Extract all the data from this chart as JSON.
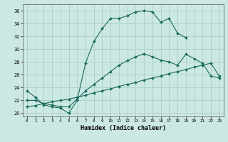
{
  "xlabel": "Humidex (Indice chaleur)",
  "bg_color": "#cce8e4",
  "grid_color": "#aacfcc",
  "line_color": "#1a6b5a",
  "xlim": [
    -0.5,
    23.5
  ],
  "ylim": [
    19.5,
    37.0
  ],
  "xticks": [
    0,
    1,
    2,
    3,
    4,
    5,
    6,
    7,
    8,
    9,
    10,
    11,
    12,
    13,
    14,
    15,
    16,
    17,
    18,
    19,
    20,
    21,
    22,
    23
  ],
  "yticks": [
    20,
    22,
    24,
    26,
    28,
    30,
    32,
    34,
    36
  ],
  "curve1_x": [
    0,
    1,
    2,
    3,
    4,
    5,
    6,
    7,
    8,
    9,
    10,
    11,
    12,
    13,
    14,
    15,
    16,
    17,
    18,
    19
  ],
  "curve1_y": [
    23.5,
    22.5,
    21.3,
    21.0,
    20.8,
    20.0,
    22.0,
    27.8,
    31.2,
    33.2,
    34.8,
    34.8,
    35.2,
    35.8,
    36.0,
    35.8,
    34.2,
    34.8,
    32.5,
    31.8
  ],
  "curve2_x": [
    0,
    1,
    2,
    3,
    4,
    5,
    6,
    7,
    8,
    9,
    10,
    11,
    12,
    13,
    14,
    15,
    16,
    17,
    18,
    19,
    20,
    21,
    22,
    23
  ],
  "curve2_y": [
    22.0,
    22.0,
    21.5,
    21.3,
    21.0,
    21.0,
    22.2,
    23.5,
    24.5,
    25.5,
    26.5,
    27.5,
    28.2,
    28.8,
    29.3,
    28.8,
    28.3,
    28.0,
    27.5,
    29.2,
    28.5,
    27.8,
    25.8,
    25.5
  ],
  "curve3_x": [
    0,
    1,
    2,
    3,
    4,
    5,
    6,
    7,
    8,
    9,
    10,
    11,
    12,
    13,
    14,
    15,
    16,
    17,
    18,
    19,
    20,
    21,
    22,
    23
  ],
  "curve3_y": [
    21.0,
    21.2,
    21.5,
    21.8,
    22.0,
    22.2,
    22.5,
    22.8,
    23.2,
    23.5,
    23.8,
    24.2,
    24.5,
    24.8,
    25.2,
    25.5,
    25.8,
    26.2,
    26.5,
    26.8,
    27.2,
    27.5,
    27.8,
    25.8
  ]
}
